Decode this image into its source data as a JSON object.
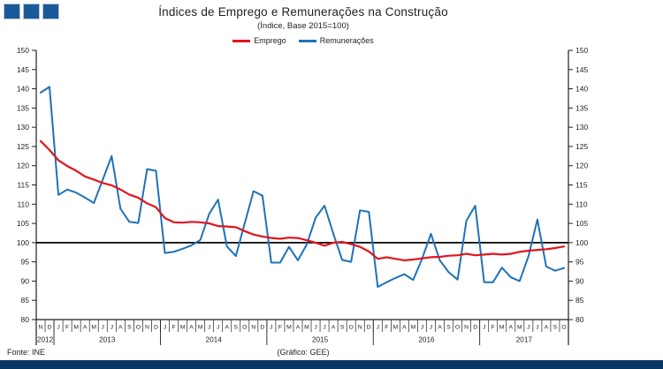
{
  "title": "Índices de Emprego e Remunerações na Construção",
  "subtitle": "(Índice, Base 2015=100)",
  "footer": {
    "source": "Fonte: INE",
    "credit": "(Gráfico: GEE)"
  },
  "colors": {
    "emprego": "#e1151d",
    "remuneracoes": "#1f72b8",
    "baseline": "#000000",
    "axis": "#1f1f1f",
    "logo_square": "#1a5a9a",
    "bottom_bar": "#083763"
  },
  "chart_data": {
    "type": "line",
    "title": "Índices de Emprego e Remunerações na Construção",
    "subtitle": "(Índice, Base 2015=100)",
    "ylabel": "",
    "xlabel": "",
    "ylim": [
      80,
      150
    ],
    "ytick_step": 5,
    "baseline_value": 100,
    "grid": false,
    "legend_position": "top-center",
    "dual_axis_labels": true,
    "years": [
      {
        "label": "2012",
        "months": [
          "N",
          "D"
        ]
      },
      {
        "label": "2013",
        "months": [
          "J",
          "F",
          "M",
          "A",
          "M",
          "J",
          "J",
          "A",
          "S",
          "O",
          "N",
          "D"
        ]
      },
      {
        "label": "2014",
        "months": [
          "J",
          "F",
          "M",
          "A",
          "M",
          "J",
          "J",
          "A",
          "S",
          "O",
          "N",
          "D"
        ]
      },
      {
        "label": "2015",
        "months": [
          "J",
          "F",
          "M",
          "A",
          "M",
          "J",
          "J",
          "A",
          "S",
          "O",
          "N",
          "D"
        ]
      },
      {
        "label": "2016",
        "months": [
          "J",
          "F",
          "M",
          "A",
          "M",
          "J",
          "J",
          "A",
          "S",
          "O",
          "N",
          "D"
        ]
      },
      {
        "label": "2017",
        "months": [
          "J",
          "F",
          "M",
          "A",
          "M",
          "J",
          "J",
          "A",
          "S",
          "O"
        ]
      }
    ],
    "series": [
      {
        "name": "Emprego",
        "color": "#e1151d",
        "values": [
          126.4,
          124.1,
          121.4,
          119.9,
          118.7,
          117.2,
          116.4,
          115.5,
          114.9,
          113.8,
          112.5,
          111.7,
          110.2,
          109.2,
          106.4,
          105.3,
          105.2,
          105.4,
          105.3,
          105.0,
          104.3,
          104.2,
          104.0,
          103.0,
          102.1,
          101.6,
          101.2,
          101.0,
          101.3,
          101.2,
          100.6,
          100.0,
          99.2,
          100.0,
          100.2,
          99.6,
          98.9,
          97.7,
          95.8,
          96.2,
          95.8,
          95.4,
          95.6,
          95.9,
          96.2,
          96.3,
          96.6,
          96.7,
          97.1,
          96.7,
          96.9,
          97.1,
          96.9,
          97.1,
          97.6,
          97.9,
          98.1,
          98.3,
          98.6,
          99.0
        ]
      },
      {
        "name": "Remunerações",
        "color": "#1f72b8",
        "values": [
          139.0,
          140.5,
          112.4,
          113.8,
          113.0,
          111.7,
          110.3,
          116.4,
          122.5,
          108.8,
          105.4,
          105.1,
          119.1,
          118.7,
          97.3,
          97.6,
          98.4,
          99.3,
          100.7,
          107.5,
          111.2,
          99.0,
          96.5,
          105.0,
          113.4,
          112.2,
          94.8,
          94.8,
          98.9,
          95.4,
          99.5,
          106.5,
          109.6,
          102.3,
          95.5,
          95.0,
          108.4,
          108.0,
          88.5,
          89.7,
          90.8,
          91.8,
          90.3,
          95.8,
          102.3,
          95.4,
          92.3,
          90.4,
          105.7,
          109.6,
          89.7,
          89.7,
          93.5,
          91.0,
          90.0,
          96.5,
          106.0,
          93.8,
          92.7,
          93.4
        ]
      }
    ]
  }
}
